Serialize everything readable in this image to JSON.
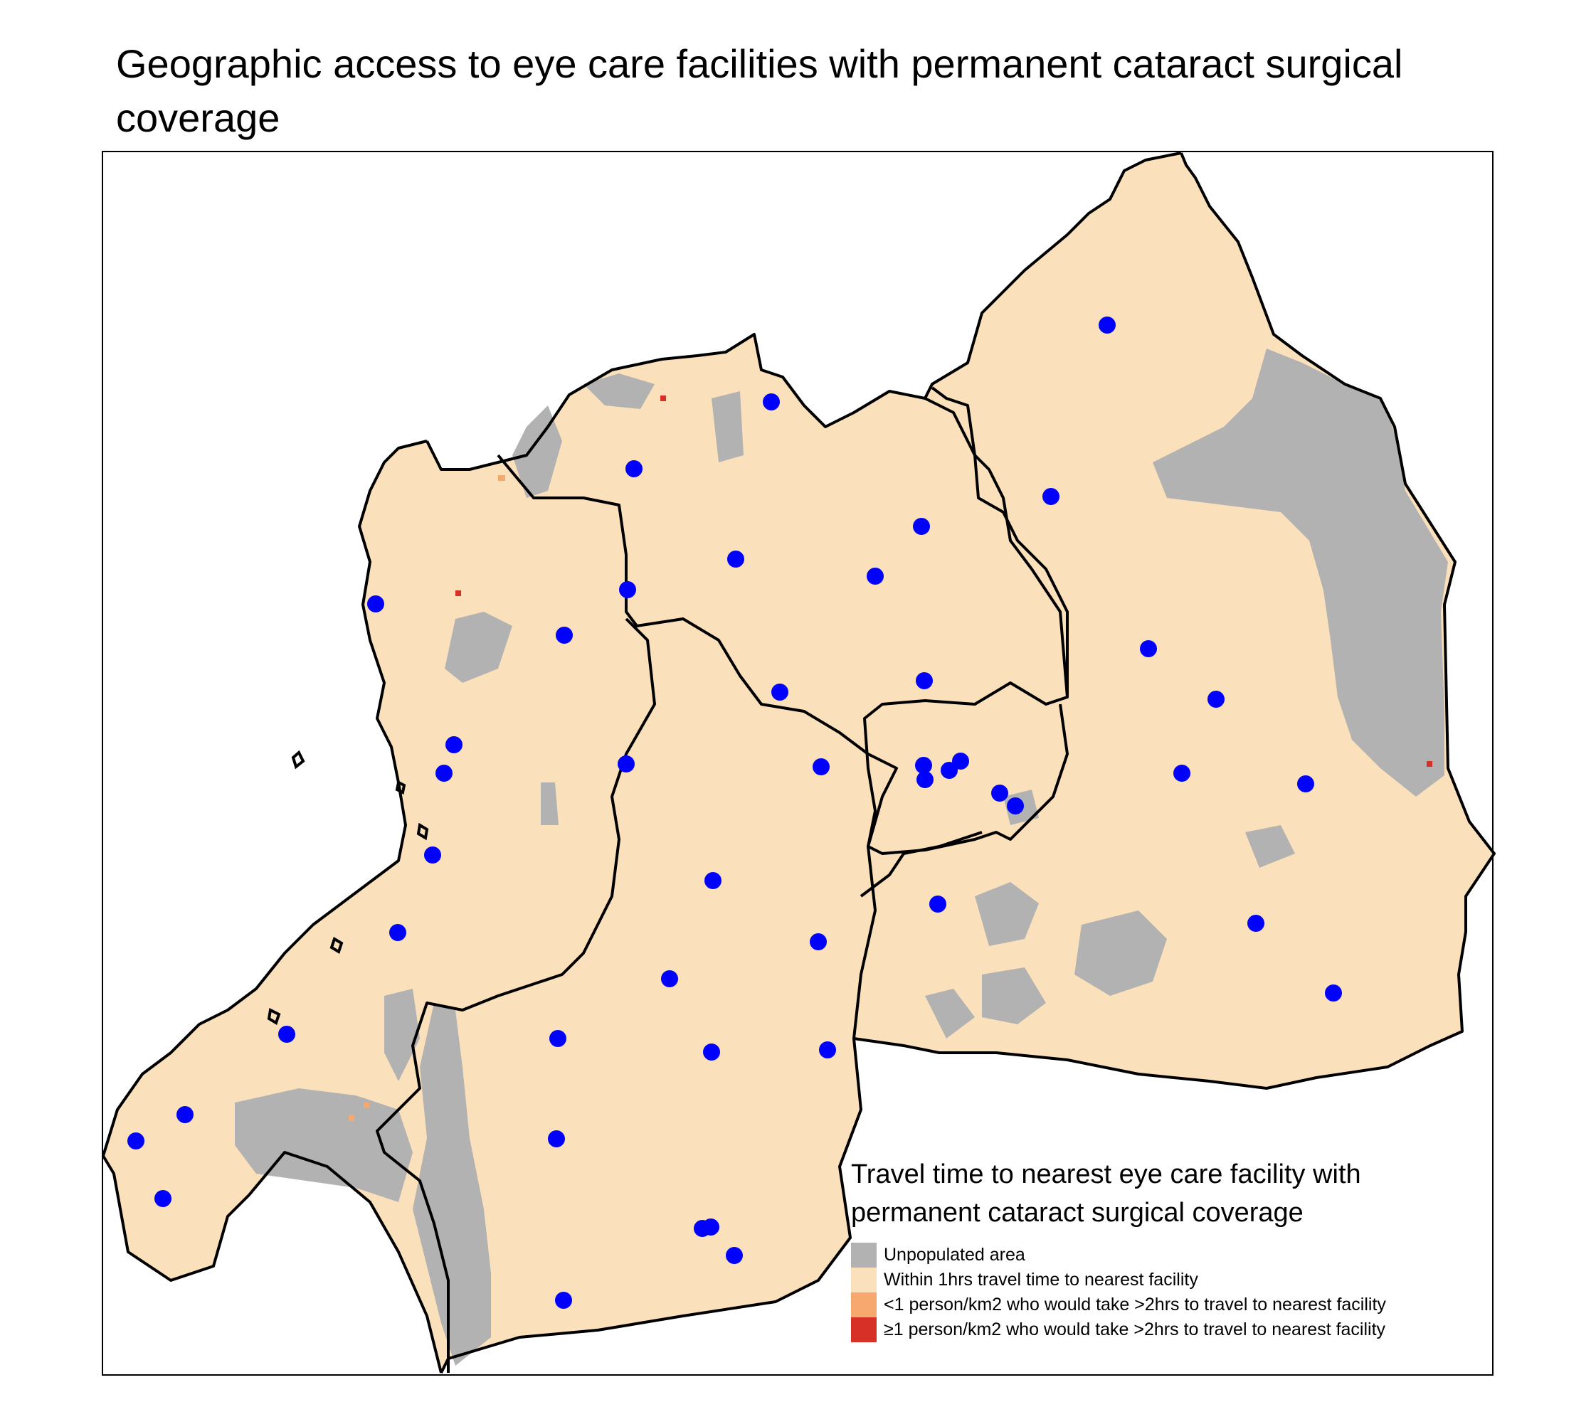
{
  "title": "Geographic access to eye care facilities with permanent cataract surgical coverage",
  "legend": {
    "title": "Travel time to nearest eye care facility with permanent cataract surgical coverage",
    "items": [
      {
        "label": "Unpopulated area",
        "color": "#b2b2b2"
      },
      {
        "label": "Within 1hrs travel time to nearest facility",
        "color": "#fbe1bb"
      },
      {
        "label": "<1 person/km2 who would take >2hrs to travel to nearest facility",
        "color": "#f6a86e"
      },
      {
        "label": "≥1 person/km2 who would take >2hrs to travel to nearest facility",
        "color": "#d73027"
      }
    ]
  },
  "colors": {
    "facility": "#0000ff",
    "boundary": "#000000",
    "accessible": "#fbe1bb",
    "unpopulated": "#b2b2b2"
  }
}
